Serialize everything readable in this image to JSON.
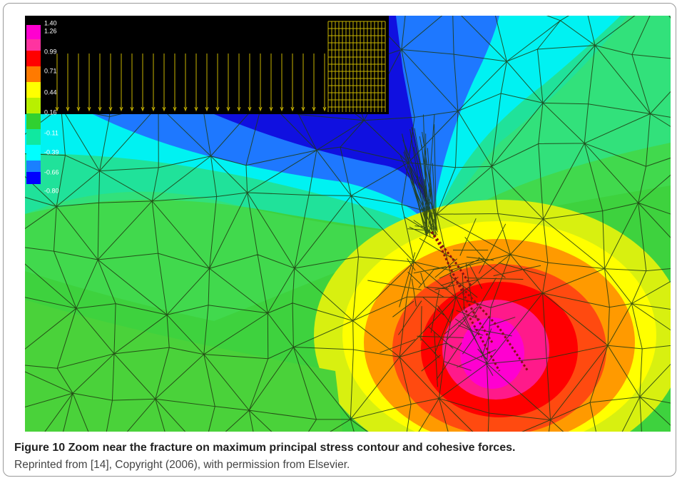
{
  "figure": {
    "legend_labels": [
      "1.40",
      "1.26",
      "0.99",
      "0.71",
      "0.44",
      "0.16",
      "-0.11",
      "-0.39",
      "-0.66",
      "-0.80"
    ],
    "caption_label": "Figure 10",
    "caption_title": "Zoom near the fracture on maximum principal stress contour and cohesive forces.",
    "caption_credit": "Reprinted from [14], Copyright (2006), with permission from Elsevier."
  }
}
